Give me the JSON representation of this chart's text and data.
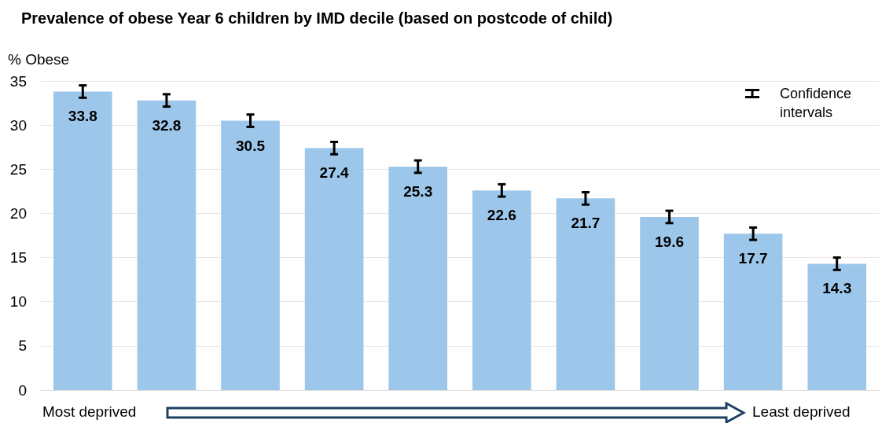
{
  "chart_data": {
    "type": "bar",
    "title": "Prevalence of obese Year 6 children by IMD decile (based on postcode of child)",
    "ylabel": "% Obese",
    "categories": [
      null,
      null,
      null,
      null,
      null,
      null,
      null,
      null,
      null,
      null
    ],
    "values": [
      33.8,
      32.8,
      30.5,
      27.4,
      25.3,
      22.6,
      21.7,
      19.6,
      17.7,
      14.3
    ],
    "errors": [
      0.7,
      0.7,
      0.7,
      0.7,
      0.7,
      0.7,
      0.7,
      0.7,
      0.7,
      0.7
    ],
    "color": "#9dc7ea",
    "ylim": [
      0,
      35
    ],
    "yticks": [
      0,
      5,
      10,
      15,
      20,
      25,
      30,
      35
    ],
    "grid": "y",
    "data_labels": true,
    "annotations": [
      "Confidence intervals",
      "Most deprived",
      "Least deprived"
    ]
  }
}
